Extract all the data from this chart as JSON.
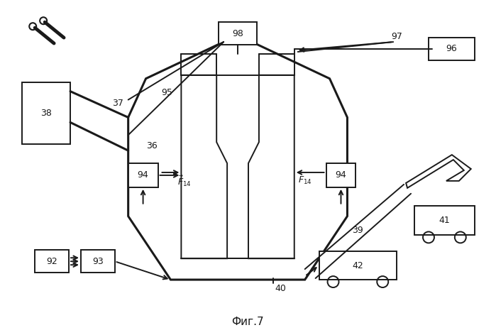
{
  "title": "Фиг.7",
  "bg_color": "#ffffff",
  "line_color": "#1a1a1a",
  "lw": 1.4,
  "lw_thick": 2.2
}
